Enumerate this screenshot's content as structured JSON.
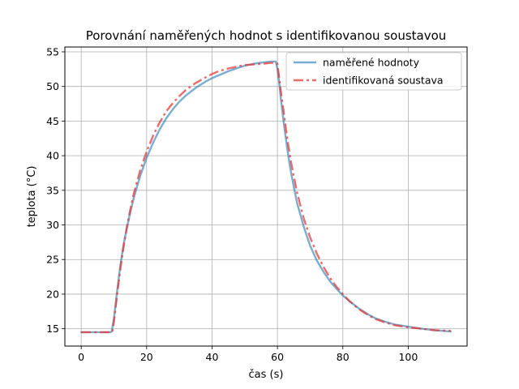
{
  "chart_data": {
    "type": "line",
    "title": "Porovnání naměřených hodnot s identifikovanou soustavou",
    "xlabel": "čas (s)",
    "ylabel": "teplota (°C)",
    "xlim": [
      -5,
      118
    ],
    "ylim": [
      12.5,
      55.7
    ],
    "xticks": [
      0,
      20,
      40,
      60,
      80,
      100
    ],
    "yticks": [
      15,
      20,
      25,
      30,
      35,
      40,
      45,
      50,
      55
    ],
    "grid": true,
    "legend_position": "top-right",
    "series": [
      {
        "name": "naměřené hodnoty",
        "color": "#1f77b4",
        "style": "solid",
        "x": [
          0,
          9,
          9.3,
          10,
          11,
          12,
          13,
          14,
          15,
          16,
          18,
          20,
          22,
          24,
          26,
          28,
          30,
          32,
          35,
          38,
          40,
          42,
          45,
          48,
          50,
          53,
          56,
          58,
          59.5,
          60,
          60.5,
          61,
          62,
          63,
          64,
          65,
          66,
          68,
          70,
          72,
          74,
          76,
          78,
          80,
          82,
          85,
          88,
          90,
          93,
          96,
          100,
          104,
          108,
          113
        ],
        "y": [
          14.5,
          14.5,
          14.6,
          16.5,
          20.5,
          24.3,
          27.3,
          29.6,
          31.8,
          33.8,
          37.0,
          39.7,
          41.9,
          43.8,
          45.4,
          46.7,
          47.8,
          48.7,
          49.8,
          50.7,
          51.2,
          51.6,
          52.2,
          52.7,
          53.0,
          53.3,
          53.5,
          53.6,
          53.6,
          52.5,
          50.8,
          48.5,
          44.5,
          41.0,
          38.0,
          35.5,
          33.2,
          29.8,
          27.0,
          24.9,
          23.3,
          21.9,
          20.8,
          19.8,
          19.0,
          17.9,
          17.0,
          16.5,
          16.0,
          15.6,
          15.3,
          15.0,
          14.8,
          14.6
        ]
      },
      {
        "name": "identifikovaná soustava",
        "color": "#e8393a",
        "style": "dashdot",
        "x": [
          0,
          9,
          9.5,
          10,
          11,
          12,
          13,
          14,
          15,
          16,
          18,
          20,
          22,
          24,
          26,
          28,
          30,
          32,
          35,
          38,
          40,
          42,
          45,
          48,
          50,
          53,
          56,
          58,
          59.5,
          60,
          61,
          62,
          63,
          64,
          65,
          66,
          68,
          70,
          72,
          74,
          76,
          78,
          80,
          82,
          85,
          88,
          90,
          93,
          96,
          100,
          104,
          108,
          113
        ],
        "y": [
          14.5,
          14.5,
          14.5,
          16.0,
          20.0,
          23.8,
          27.0,
          29.8,
          32.2,
          34.4,
          37.8,
          40.6,
          42.9,
          44.8,
          46.4,
          47.6,
          48.6,
          49.5,
          50.5,
          51.3,
          51.8,
          52.2,
          52.6,
          52.9,
          53.1,
          53.2,
          53.3,
          53.4,
          53.4,
          53.3,
          49.5,
          46.0,
          42.5,
          39.5,
          37.0,
          34.7,
          31.0,
          28.2,
          25.9,
          24.0,
          22.4,
          21.1,
          20.0,
          19.0,
          17.8,
          16.9,
          16.4,
          15.9,
          15.5,
          15.2,
          15.0,
          14.8,
          14.7
        ]
      }
    ]
  }
}
